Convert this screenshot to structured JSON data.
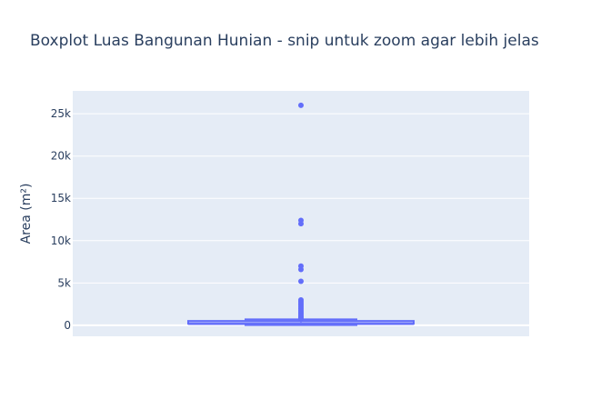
{
  "chart_data": {
    "type": "box",
    "title": "Boxplot Luas Bangunan Hunian - snip untuk zoom agar lebih jelas",
    "xlabel": "",
    "ylabel": "Area (m²)",
    "ylim": [
      -1300,
      27700
    ],
    "yticks": [
      0,
      5000,
      10000,
      15000,
      20000,
      25000
    ],
    "ytick_labels": [
      "0",
      "5k",
      "10k",
      "15k",
      "20k",
      "25k"
    ],
    "grid": true,
    "series": [
      {
        "min": 30,
        "q1": 90,
        "median": 150,
        "q3": 350,
        "upper_fence": 700,
        "outliers": [
          26000,
          12400,
          12000,
          7000,
          6600,
          5200,
          3000,
          2800,
          2600,
          2400,
          2200,
          2000,
          1800,
          1600,
          1450,
          1300,
          1150,
          1000,
          900,
          800
        ]
      }
    ],
    "colors": {
      "box": "#636efa",
      "plot_bg": "#e5ecf6",
      "grid": "#ffffff",
      "text": "#2a3f5f"
    }
  }
}
